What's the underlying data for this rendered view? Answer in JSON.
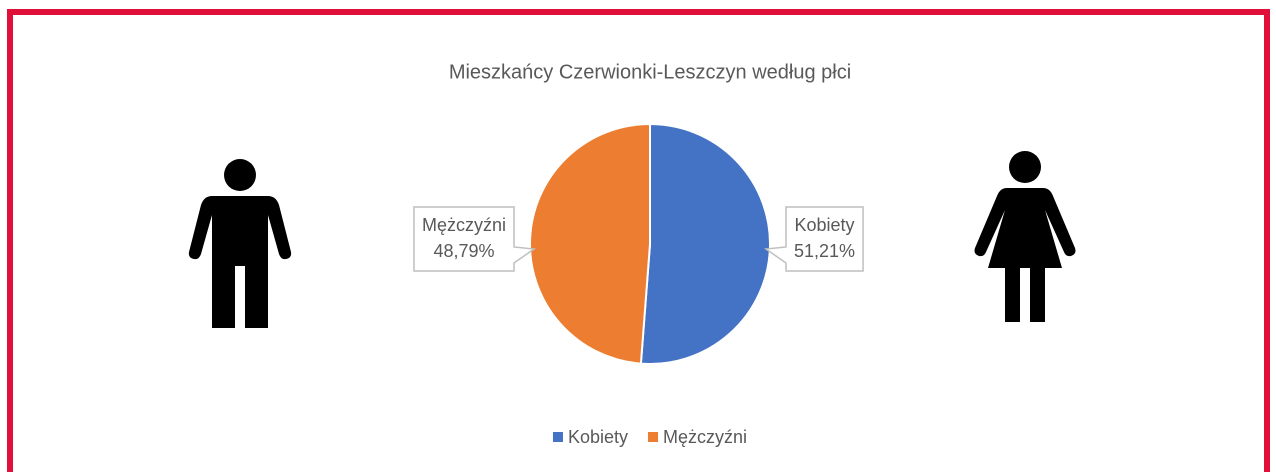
{
  "chart_data": {
    "type": "pie",
    "title": "Mieszkańcy Czerwionki-Leszczyn według płci",
    "categories": [
      "Kobiety",
      "Mężczyźni"
    ],
    "values": [
      51.21,
      48.79
    ],
    "value_labels": [
      "51,21%",
      "48,79%"
    ],
    "colors": [
      "#4472c4",
      "#ed7d31"
    ],
    "legend": "bottom"
  }
}
